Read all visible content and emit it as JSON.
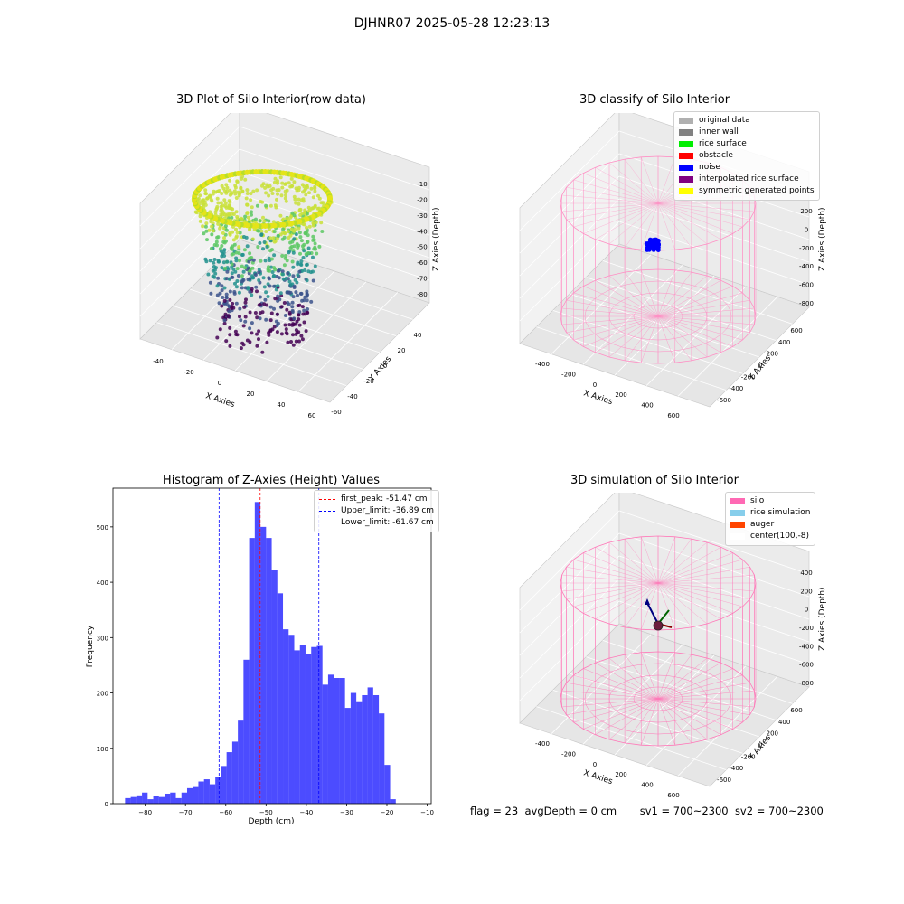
{
  "figure": {
    "suptitle": "DJHNR07 2025-05-28 12:23:13",
    "status": {
      "flag": "flag = 23",
      "avg_depth": "avgDepth = 0 cm",
      "sv1": "sv1 = 700~2300",
      "sv2": "sv2 = 700~2300"
    }
  },
  "panels": {
    "raw": {
      "title": "3D Plot of Silo Interior(row data)",
      "xlabel": "X Axies",
      "ylabel": "Y Axies",
      "zlabel": "Z Axies (Depth)",
      "xticks": [
        "-40",
        "-20",
        "0",
        "20",
        "40",
        "60"
      ],
      "yticks": [
        "-60",
        "-40",
        "-20",
        "0",
        "20",
        "40"
      ],
      "zticks": [
        "-10",
        "-20",
        "-30",
        "-40",
        "-50",
        "-60",
        "-70",
        "-80"
      ]
    },
    "classify": {
      "title": "3D classify of Silo Interior",
      "xlabel": "X Axies",
      "ylabel": "Y Axies",
      "zlabel": "Z Axies (Depth)",
      "xticks": [
        "-400",
        "-200",
        "0",
        "200",
        "400",
        "600"
      ],
      "yticks": [
        "-600",
        "-400",
        "-200",
        "0",
        "200",
        "400",
        "600"
      ],
      "zticks": [
        "200",
        "0",
        "-200",
        "-400",
        "-600",
        "-800"
      ],
      "legend": [
        {
          "label": "original data",
          "color": "#b0b0b0"
        },
        {
          "label": "inner wall",
          "color": "#808080"
        },
        {
          "label": "rice surface",
          "color": "#00ee00"
        },
        {
          "label": "obstacle",
          "color": "#ff0000"
        },
        {
          "label": "noise",
          "color": "#0000ff"
        },
        {
          "label": "interpolated rice surface",
          "color": "#800080"
        },
        {
          "label": "symmetric generated points",
          "color": "#ffff00"
        }
      ]
    },
    "simulation": {
      "title": "3D simulation of Silo Interior",
      "xlabel": "X Axies",
      "ylabel": "Y Axies",
      "zlabel": "Z Axies (Depth)",
      "xticks": [
        "-400",
        "-200",
        "0",
        "200",
        "400",
        "600"
      ],
      "yticks": [
        "-600",
        "-400",
        "-200",
        "0",
        "200",
        "400",
        "600"
      ],
      "zticks": [
        "400",
        "200",
        "0",
        "-200",
        "-400",
        "-600",
        "-800"
      ],
      "legend": [
        {
          "label": "silo",
          "color": "#ff69b4"
        },
        {
          "label": "rice simulation",
          "color": "#87ceeb"
        },
        {
          "label": "auger",
          "color": "#ff4500"
        },
        {
          "label": "center(100,-8)",
          "color": "#ffffff"
        }
      ]
    }
  },
  "chart_data": {
    "type": "bar",
    "title": "Histogram of Z-Axies (Height) Values",
    "xlabel": "Depth (cm)",
    "ylabel": "Frequency",
    "xlim": [
      -88,
      -9
    ],
    "ylim": [
      0,
      570
    ],
    "xticks": [
      -80,
      -70,
      -60,
      -50,
      -40,
      -30,
      -20,
      -10
    ],
    "yticks": [
      0,
      100,
      200,
      300,
      400,
      500
    ],
    "bar_color": "#0000ff",
    "bins": [
      {
        "x0": -85.0,
        "x1": -83.6,
        "count": 10
      },
      {
        "x0": -83.6,
        "x1": -82.2,
        "count": 12
      },
      {
        "x0": -82.2,
        "x1": -80.8,
        "count": 15
      },
      {
        "x0": -80.8,
        "x1": -79.4,
        "count": 20
      },
      {
        "x0": -79.4,
        "x1": -78.0,
        "count": 8
      },
      {
        "x0": -78.0,
        "x1": -76.6,
        "count": 14
      },
      {
        "x0": -76.6,
        "x1": -75.2,
        "count": 12
      },
      {
        "x0": -75.2,
        "x1": -73.8,
        "count": 18
      },
      {
        "x0": -73.8,
        "x1": -72.4,
        "count": 20
      },
      {
        "x0": -72.4,
        "x1": -71.0,
        "count": 10
      },
      {
        "x0": -71.0,
        "x1": -69.6,
        "count": 20
      },
      {
        "x0": -69.6,
        "x1": -68.2,
        "count": 28
      },
      {
        "x0": -68.2,
        "x1": -66.8,
        "count": 30
      },
      {
        "x0": -66.8,
        "x1": -65.4,
        "count": 40
      },
      {
        "x0": -65.4,
        "x1": -64.0,
        "count": 44
      },
      {
        "x0": -64.0,
        "x1": -62.6,
        "count": 35
      },
      {
        "x0": -62.6,
        "x1": -61.2,
        "count": 48
      },
      {
        "x0": -61.2,
        "x1": -59.8,
        "count": 68
      },
      {
        "x0": -59.8,
        "x1": -58.4,
        "count": 93
      },
      {
        "x0": -58.4,
        "x1": -57.0,
        "count": 112
      },
      {
        "x0": -57.0,
        "x1": -55.6,
        "count": 150
      },
      {
        "x0": -55.6,
        "x1": -54.2,
        "count": 260
      },
      {
        "x0": -54.2,
        "x1": -52.8,
        "count": 480
      },
      {
        "x0": -52.8,
        "x1": -51.4,
        "count": 545
      },
      {
        "x0": -51.4,
        "x1": -50.0,
        "count": 500
      },
      {
        "x0": -50.0,
        "x1": -48.6,
        "count": 480
      },
      {
        "x0": -48.6,
        "x1": -47.2,
        "count": 423
      },
      {
        "x0": -47.2,
        "x1": -45.8,
        "count": 380
      },
      {
        "x0": -45.8,
        "x1": -44.4,
        "count": 315
      },
      {
        "x0": -44.4,
        "x1": -43.0,
        "count": 305
      },
      {
        "x0": -43.0,
        "x1": -41.6,
        "count": 277
      },
      {
        "x0": -41.6,
        "x1": -40.2,
        "count": 287
      },
      {
        "x0": -40.2,
        "x1": -38.8,
        "count": 270
      },
      {
        "x0": -38.8,
        "x1": -37.4,
        "count": 283
      },
      {
        "x0": -37.4,
        "x1": -36.0,
        "count": 285
      },
      {
        "x0": -36.0,
        "x1": -34.6,
        "count": 215
      },
      {
        "x0": -34.6,
        "x1": -33.2,
        "count": 233
      },
      {
        "x0": -33.2,
        "x1": -31.8,
        "count": 227
      },
      {
        "x0": -31.8,
        "x1": -30.4,
        "count": 227
      },
      {
        "x0": -30.4,
        "x1": -29.0,
        "count": 173
      },
      {
        "x0": -29.0,
        "x1": -27.6,
        "count": 200
      },
      {
        "x0": -27.6,
        "x1": -26.2,
        "count": 185
      },
      {
        "x0": -26.2,
        "x1": -24.8,
        "count": 196
      },
      {
        "x0": -24.8,
        "x1": -23.4,
        "count": 210
      },
      {
        "x0": -23.4,
        "x1": -22.0,
        "count": 196
      },
      {
        "x0": -22.0,
        "x1": -20.6,
        "count": 163
      },
      {
        "x0": -20.6,
        "x1": -19.2,
        "count": 70
      },
      {
        "x0": -19.2,
        "x1": -17.8,
        "count": 8
      },
      {
        "x0": -17.8,
        "x1": -16.4,
        "count": 0
      }
    ],
    "vlines": [
      {
        "x": -51.47,
        "color": "#ff0000",
        "label": "first_peak: -51.47 cm"
      },
      {
        "x": -36.89,
        "color": "#0000ff",
        "label": "Upper_limit: -36.89 cm"
      },
      {
        "x": -61.67,
        "color": "#0000ff",
        "label": "Lower_limit: -61.67 cm"
      }
    ]
  }
}
